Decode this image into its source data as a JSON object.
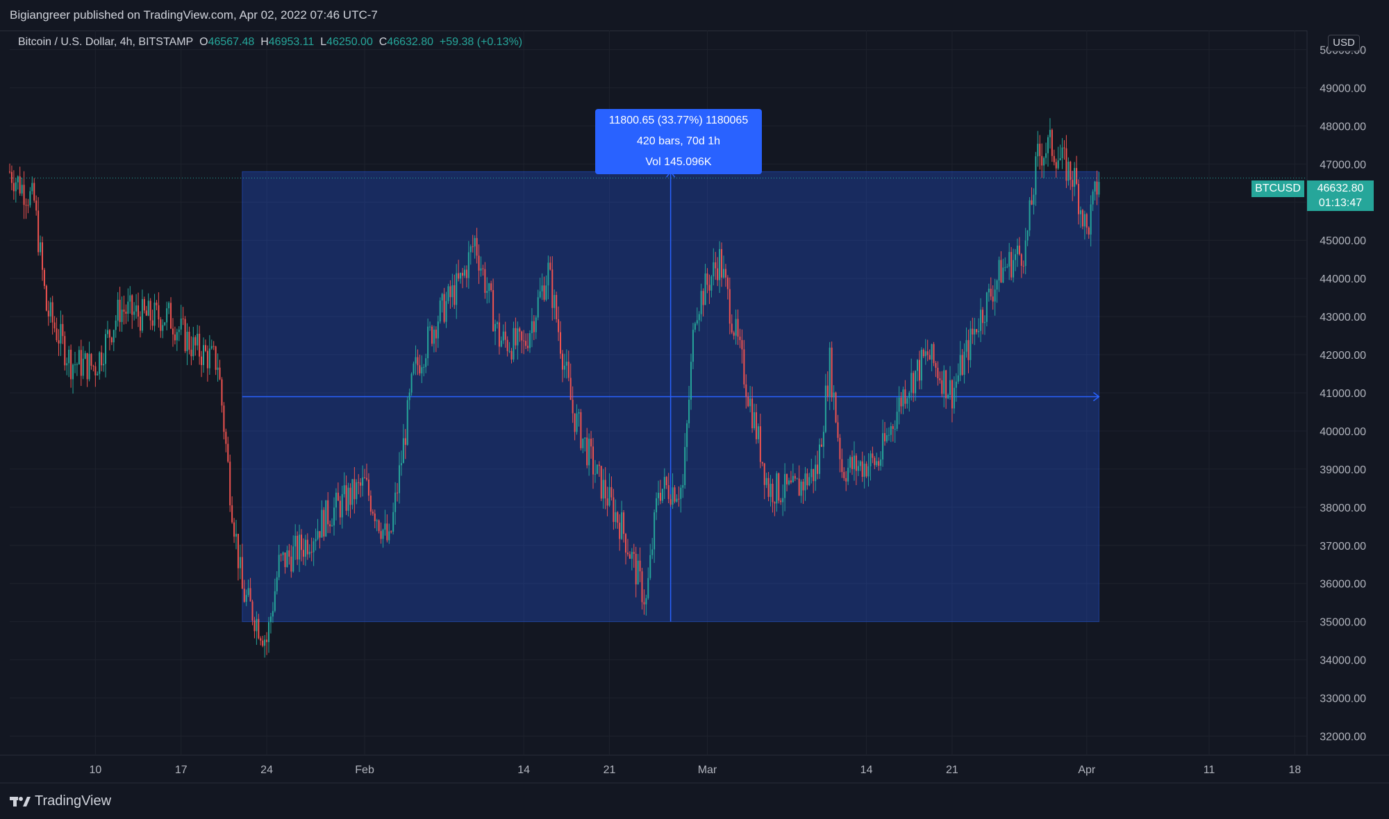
{
  "header": {
    "publisher_line": "Bigiangreer published on TradingView.com, Apr 02, 2022 07:46 UTC-7"
  },
  "legend": {
    "symbol": "Bitcoin / U.S. Dollar, 4h, BITSTAMP",
    "open_label": "O",
    "open": "46567.48",
    "high_label": "H",
    "high": "46953.11",
    "low_label": "L",
    "low": "46250.00",
    "close_label": "C",
    "close": "46632.80",
    "change": "+59.38 (+0.13%)"
  },
  "currency": "USD",
  "price_label": {
    "ticker": "BTCUSD",
    "price": "46632.80",
    "countdown": "01:13:47"
  },
  "measure_tool": {
    "line1": "11800.65 (33.77%) 1180065",
    "line2": "420 bars, 70d 1h",
    "line3": "Vol 145.096K"
  },
  "footer": {
    "brand": "TradingView"
  },
  "colors": {
    "background": "#131722",
    "up": "#26a69a",
    "down": "#ef5350",
    "measure": "#2962ff",
    "grid": "#1e222d"
  },
  "chart_data": {
    "type": "candlestick",
    "interval": "4h",
    "ylim": [
      31500,
      50500
    ],
    "y_ticks": [
      "50000.00",
      "49000.00",
      "48000.00",
      "47000.00",
      "46000.00",
      "45000.00",
      "44000.00",
      "43000.00",
      "42000.00",
      "41000.00",
      "40000.00",
      "39000.00",
      "38000.00",
      "37000.00",
      "36000.00",
      "35000.00",
      "34000.00",
      "33000.00",
      "32000.00"
    ],
    "x_ticks": [
      "10",
      "17",
      "24",
      "Feb",
      "14",
      "21",
      "Mar",
      "14",
      "21",
      "Apr",
      "11",
      "18"
    ],
    "x_tick_dates": [
      "2022-01-10",
      "2022-01-17",
      "2022-01-24",
      "2022-02-01",
      "2022-02-14",
      "2022-02-21",
      "2022-03-01",
      "2022-03-14",
      "2022-03-21",
      "2022-04-01",
      "2022-04-11",
      "2022-04-18"
    ],
    "x_range": [
      "2022-01-03",
      "2022-04-19"
    ],
    "last_price": 46632.8,
    "price_anchors": [
      [
        "2022-01-03",
        46800
      ],
      [
        "2022-01-05",
        46000
      ],
      [
        "2022-01-06",
        43200
      ],
      [
        "2022-01-08",
        41800
      ],
      [
        "2022-01-10",
        41700
      ],
      [
        "2022-01-12",
        43200
      ],
      [
        "2022-01-14",
        43000
      ],
      [
        "2022-01-16",
        43000
      ],
      [
        "2022-01-18",
        42200
      ],
      [
        "2022-01-20",
        41800
      ],
      [
        "2022-01-21",
        38500
      ],
      [
        "2022-01-22",
        35800
      ],
      [
        "2022-01-24",
        34500
      ],
      [
        "2022-01-25",
        36500
      ],
      [
        "2022-01-27",
        37000
      ],
      [
        "2022-01-29",
        37800
      ],
      [
        "2022-02-01",
        38600
      ],
      [
        "2022-02-03",
        37000
      ],
      [
        "2022-02-05",
        41500
      ],
      [
        "2022-02-07",
        43000
      ],
      [
        "2022-02-09",
        44000
      ],
      [
        "2022-02-10",
        45000
      ],
      [
        "2022-02-12",
        42400
      ],
      [
        "2022-02-14",
        42200
      ],
      [
        "2022-02-16",
        44200
      ],
      [
        "2022-02-18",
        40500
      ],
      [
        "2022-02-20",
        38800
      ],
      [
        "2022-02-22",
        37500
      ],
      [
        "2022-02-24",
        35500
      ],
      [
        "2022-02-25",
        38500
      ],
      [
        "2022-02-27",
        38500
      ],
      [
        "2022-02-28",
        43200
      ],
      [
        "2022-03-02",
        44500
      ],
      [
        "2022-03-04",
        41500
      ],
      [
        "2022-03-06",
        38500
      ],
      [
        "2022-03-08",
        38400
      ],
      [
        "2022-03-10",
        39000
      ],
      [
        "2022-03-11",
        41800
      ],
      [
        "2022-03-12",
        39000
      ],
      [
        "2022-03-15",
        39200
      ],
      [
        "2022-03-17",
        41000
      ],
      [
        "2022-03-19",
        42000
      ],
      [
        "2022-03-21",
        41000
      ],
      [
        "2022-03-23",
        42800
      ],
      [
        "2022-03-25",
        44200
      ],
      [
        "2022-03-27",
        44800
      ],
      [
        "2022-03-28",
        47200
      ],
      [
        "2022-03-29",
        47500
      ],
      [
        "2022-03-31",
        46600
      ],
      [
        "2022-04-01",
        45200
      ],
      [
        "2022-04-02",
        46632.8
      ]
    ],
    "measurement": {
      "start": "2022-01-22",
      "end": "2022-04-02",
      "from_price": 35000,
      "to_price": 46800,
      "midline_price": 40900,
      "change": "11800.65",
      "change_percent": "33.77%",
      "bars": 420,
      "duration": "70d 1h",
      "volume": "145.096K"
    }
  }
}
